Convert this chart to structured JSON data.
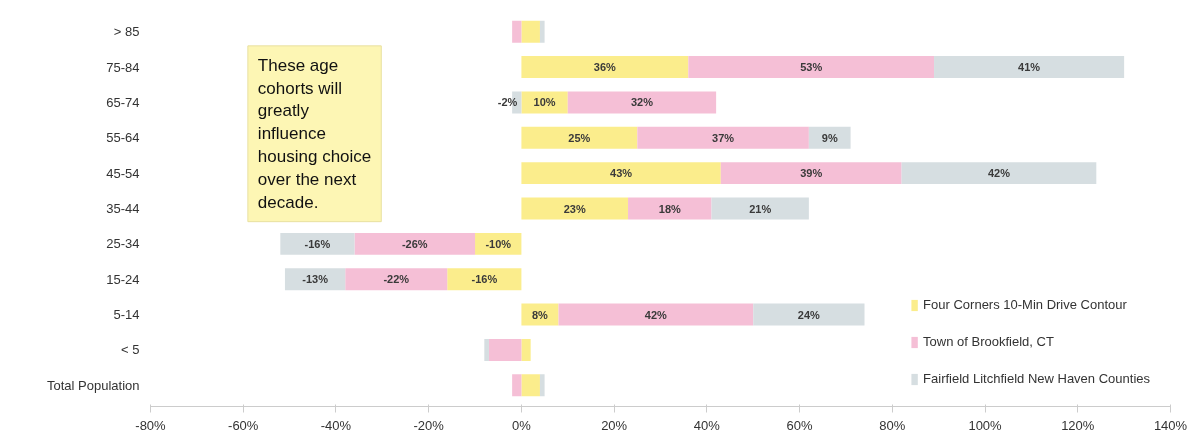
{
  "chart_data": {
    "type": "bar",
    "orientation": "horizontal",
    "stacked": true,
    "categories": [
      "> 85",
      "75-84",
      "65-74",
      "55-64",
      "45-54",
      "35-44",
      "25-34",
      "15-24",
      "5-14",
      "< 5",
      "Total Population"
    ],
    "series": [
      {
        "name": "Four Corners 10-Min Drive Contour",
        "color": "#fbed8c",
        "values": [
          4,
          36,
          10,
          25,
          43,
          23,
          -10,
          -16,
          8,
          2,
          4
        ],
        "value_labels": [
          null,
          "36%",
          "10%",
          "25%",
          "43%",
          "23%",
          "-10%",
          "-16%",
          "8%",
          null,
          null
        ]
      },
      {
        "name": "Town of Brookfield, CT",
        "color": "#f5bfd6",
        "values": [
          -2,
          53,
          32,
          37,
          39,
          18,
          -26,
          -22,
          42,
          -7,
          -2
        ],
        "value_labels": [
          null,
          "53%",
          "32%",
          "37%",
          "39%",
          "18%",
          "-26%",
          "-22%",
          "42%",
          null,
          null
        ]
      },
      {
        "name": "Fairfield Litchfield New Haven Counties",
        "color": "#d6dee1",
        "values": [
          1,
          41,
          -2,
          9,
          42,
          21,
          -16,
          -13,
          24,
          -1,
          1
        ],
        "value_labels": [
          null,
          "41%",
          "-2%",
          "9%",
          "42%",
          "21%",
          "-16%",
          "-13%",
          "24%",
          null,
          null
        ]
      }
    ],
    "xlim": [
      -80,
      140
    ],
    "xticks": [
      {
        "value": -80,
        "label": "-80%"
      },
      {
        "value": -60,
        "label": "-60%"
      },
      {
        "value": -40,
        "label": "-40%"
      },
      {
        "value": -20,
        "label": "-20%"
      },
      {
        "value": 0,
        "label": "0%"
      },
      {
        "value": 20,
        "label": "20%"
      },
      {
        "value": 40,
        "label": "40%"
      },
      {
        "value": 60,
        "label": "60%"
      },
      {
        "value": 80,
        "label": "80%"
      },
      {
        "value": 100,
        "label": "100%"
      },
      {
        "value": 120,
        "label": "120%"
      },
      {
        "value": 140,
        "label": "140%"
      }
    ],
    "grid": false,
    "legend": "bottom right",
    "annotations": [
      "These age cohorts will greatly influence housing choice over the next decade."
    ]
  }
}
